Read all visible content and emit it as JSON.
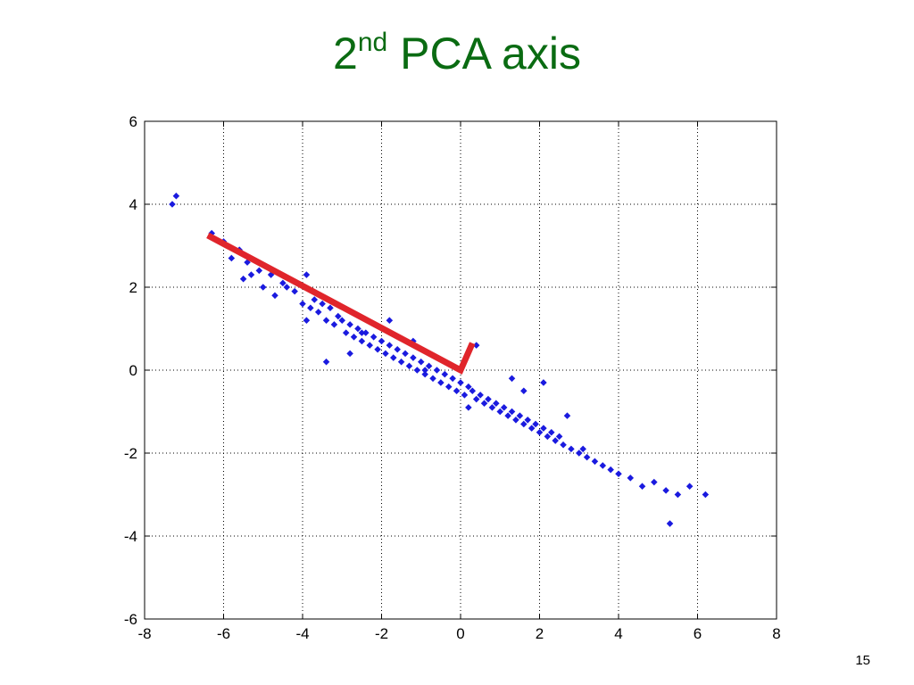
{
  "slide": {
    "title_main": "2",
    "title_sup": "nd",
    "title_rest": " PCA axis",
    "page_number": "15"
  },
  "colors": {
    "title": "#0a6b12",
    "points": "#1a1adf",
    "axis_line": "#e0252b",
    "grid": "#000000"
  },
  "chart_data": {
    "type": "scatter",
    "title": "",
    "xlabel": "",
    "ylabel": "",
    "xlim": [
      -8,
      8
    ],
    "ylim": [
      -6,
      6
    ],
    "xticks": [
      -8,
      -6,
      -4,
      -2,
      0,
      2,
      4,
      6,
      8
    ],
    "yticks": [
      -6,
      -4,
      -2,
      0,
      2,
      4,
      6
    ],
    "grid": true,
    "series": [
      {
        "marker": "diamond",
        "color": "#1a1adf",
        "x": [
          -7.3,
          -7.2,
          -6.3,
          -6.0,
          -5.8,
          -5.6,
          -5.5,
          -5.4,
          -5.3,
          -5.1,
          -5.0,
          -4.8,
          -4.7,
          -4.5,
          -4.4,
          -4.2,
          -4.0,
          -3.9,
          -3.8,
          -3.7,
          -3.6,
          -3.5,
          -3.4,
          -3.3,
          -3.2,
          -3.1,
          -3.0,
          -2.9,
          -2.8,
          -2.7,
          -2.6,
          -2.5,
          -2.4,
          -2.3,
          -2.2,
          -2.1,
          -2.0,
          -1.9,
          -1.8,
          -1.7,
          -1.6,
          -1.5,
          -1.4,
          -1.3,
          -1.2,
          -1.1,
          -1.0,
          -0.9,
          -0.8,
          -0.7,
          -0.6,
          -0.5,
          -0.4,
          -0.3,
          -0.2,
          -0.1,
          0.0,
          0.1,
          0.2,
          0.3,
          0.4,
          0.5,
          0.6,
          0.7,
          0.8,
          0.9,
          1.0,
          1.1,
          1.2,
          1.3,
          1.4,
          1.5,
          1.6,
          1.7,
          1.8,
          1.9,
          2.0,
          2.1,
          2.2,
          2.3,
          2.4,
          2.5,
          2.6,
          2.8,
          3.0,
          3.2,
          3.4,
          3.6,
          3.8,
          4.0,
          4.3,
          4.6,
          4.9,
          5.2,
          5.3,
          5.5,
          5.8,
          6.2,
          -3.4,
          -2.5,
          -1.8,
          -0.9,
          0.4,
          1.3,
          2.1,
          3.1,
          -3.9,
          -2.8,
          -1.2,
          0.2,
          1.6,
          2.7
        ],
        "y": [
          4.0,
          4.2,
          3.3,
          3.1,
          2.7,
          2.9,
          2.2,
          2.6,
          2.3,
          2.4,
          2.0,
          2.3,
          1.8,
          2.1,
          2.0,
          1.9,
          1.6,
          2.3,
          1.5,
          1.7,
          1.4,
          1.6,
          1.2,
          1.5,
          1.1,
          1.3,
          1.2,
          0.9,
          1.1,
          0.8,
          1.0,
          0.7,
          0.9,
          0.6,
          0.8,
          0.5,
          0.7,
          0.4,
          0.6,
          0.3,
          0.5,
          0.2,
          0.4,
          0.1,
          0.3,
          0.0,
          0.2,
          -0.1,
          0.1,
          -0.2,
          0.0,
          -0.3,
          -0.1,
          -0.4,
          -0.2,
          -0.5,
          -0.3,
          -0.6,
          -0.4,
          -0.5,
          -0.7,
          -0.6,
          -0.8,
          -0.7,
          -0.9,
          -0.8,
          -1.0,
          -0.9,
          -1.1,
          -1.0,
          -1.2,
          -1.1,
          -1.3,
          -1.2,
          -1.4,
          -1.3,
          -1.5,
          -1.4,
          -1.6,
          -1.5,
          -1.7,
          -1.6,
          -1.8,
          -1.9,
          -2.0,
          -2.1,
          -2.2,
          -2.3,
          -2.4,
          -2.5,
          -2.6,
          -2.8,
          -2.7,
          -2.9,
          -3.7,
          -3.0,
          -2.8,
          -3.0,
          0.2,
          0.9,
          1.2,
          0.0,
          0.6,
          -0.2,
          -0.3,
          -1.9,
          1.2,
          0.4,
          0.7,
          -0.9,
          -0.5,
          -1.1
        ]
      }
    ],
    "annotations": [
      {
        "type": "polyline",
        "color": "#e0252b",
        "points": [
          [
            -6.4,
            3.25
          ],
          [
            0.0,
            0.0
          ],
          [
            0.3,
            0.65
          ]
        ]
      }
    ]
  }
}
